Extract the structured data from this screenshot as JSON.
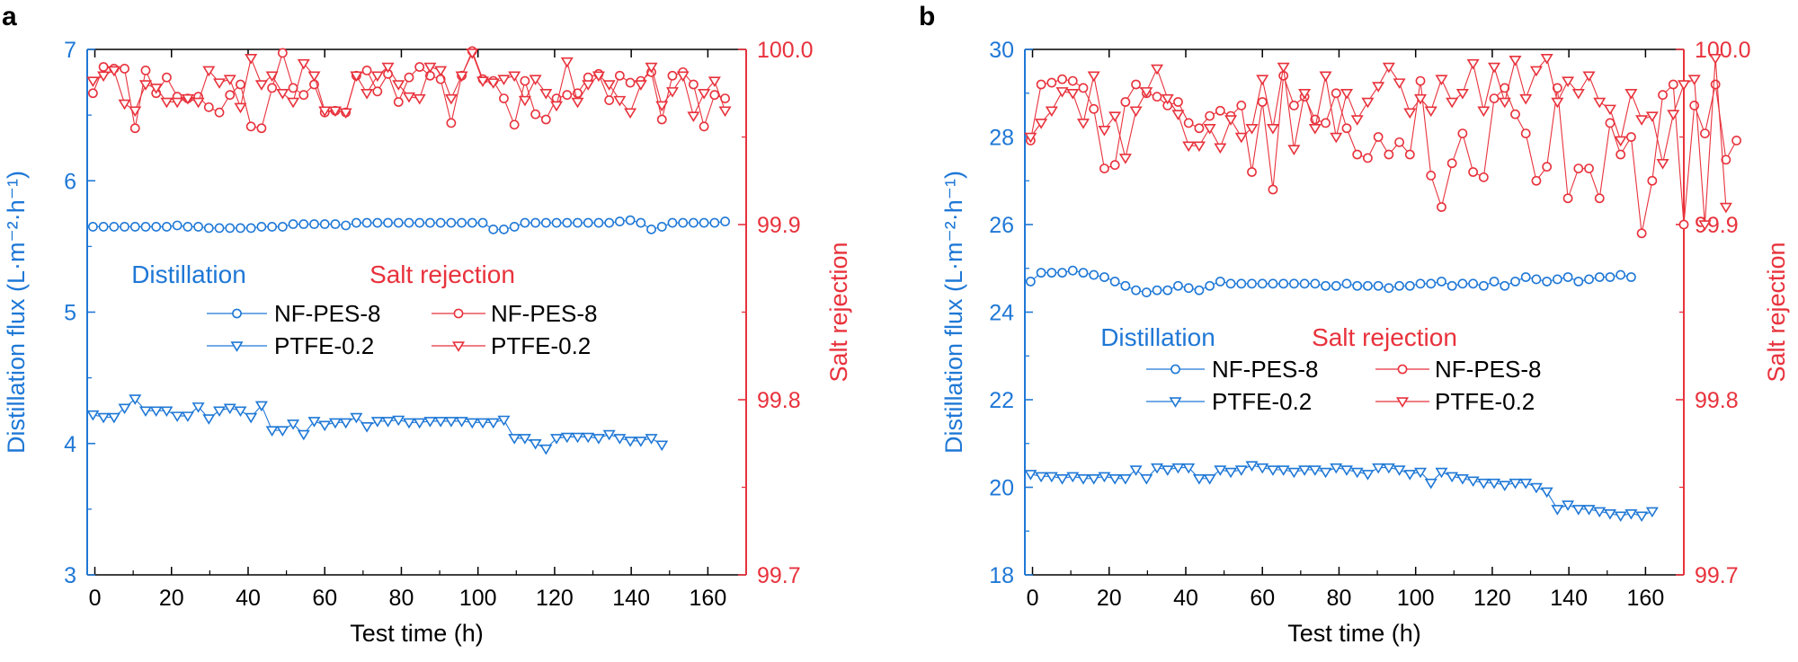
{
  "colors": {
    "blue": "#1f78d6",
    "red": "#e8323c",
    "black": "#000000"
  },
  "chart_data": [
    {
      "panel_label": "a",
      "type": "scatter",
      "xlabel": "Test time (h)",
      "ylabel_left": "Distillation flux (L·m⁻²·h⁻¹)",
      "ylabel_right": "Salt rejection",
      "xlim": [
        -2,
        170
      ],
      "xticks": [
        "0",
        "20",
        "40",
        "60",
        "80",
        "100",
        "120",
        "140",
        "160"
      ],
      "ylim_left": [
        3,
        7
      ],
      "yticks_left": [
        "3",
        "4",
        "5",
        "6",
        "7"
      ],
      "ylim_right": [
        99.7,
        100.0
      ],
      "yticks_right": [
        "99.7",
        "99.8",
        "99.9",
        "100.0"
      ],
      "legend": {
        "group_left_title": "Distillation",
        "group_right_title": "Salt rejection",
        "entries_left": [
          "NF-PES-8",
          "PTFE-0.2"
        ],
        "entries_right": [
          "NF-PES-8",
          "PTFE-0.2"
        ]
      },
      "series": [
        {
          "name": "NF-PES-8 (Distillation)",
          "axis": "left",
          "marker": "circle",
          "color": "#1f78d6",
          "x_start": -0.5,
          "x_step": 2.75,
          "values": [
            5.65,
            5.65,
            5.65,
            5.65,
            5.65,
            5.65,
            5.65,
            5.65,
            5.66,
            5.65,
            5.65,
            5.64,
            5.64,
            5.64,
            5.64,
            5.64,
            5.65,
            5.65,
            5.65,
            5.67,
            5.67,
            5.67,
            5.67,
            5.67,
            5.66,
            5.68,
            5.68,
            5.68,
            5.68,
            5.68,
            5.68,
            5.68,
            5.68,
            5.68,
            5.68,
            5.68,
            5.68,
            5.68,
            5.63,
            5.63,
            5.65,
            5.68,
            5.68,
            5.68,
            5.68,
            5.68,
            5.68,
            5.68,
            5.68,
            5.68,
            5.69,
            5.7,
            5.68,
            5.63,
            5.65,
            5.68,
            5.68,
            5.68,
            5.68,
            5.68,
            5.69
          ]
        },
        {
          "name": "PTFE-0.2 (Distillation)",
          "axis": "left",
          "marker": "triangle",
          "color": "#1f78d6",
          "x_start": -0.5,
          "x_step": 2.75,
          "values": [
            4.22,
            4.2,
            4.2,
            4.27,
            4.34,
            4.25,
            4.25,
            4.25,
            4.21,
            4.21,
            4.28,
            4.19,
            4.25,
            4.27,
            4.25,
            4.2,
            4.29,
            4.1,
            4.1,
            4.15,
            4.07,
            4.17,
            4.14,
            4.16,
            4.16,
            4.2,
            4.13,
            4.17,
            4.17,
            4.18,
            4.16,
            4.16,
            4.17,
            4.17,
            4.17,
            4.17,
            4.16,
            4.16,
            4.16,
            4.18,
            4.04,
            4.04,
            4.0,
            3.96,
            4.04,
            4.05,
            4.05,
            4.05,
            4.04,
            4.07,
            4.04,
            4.02,
            4.02,
            4.04,
            3.99
          ]
        },
        {
          "name": "NF-PES-8 (Salt rejection)",
          "axis": "right",
          "marker": "circle",
          "color": "#e8323c",
          "x_start": -0.5,
          "x_step": 2.75,
          "values": [
            99.975,
            99.99,
            99.989,
            99.989,
            99.955,
            99.988,
            99.975,
            99.984,
            99.973,
            99.972,
            99.973,
            99.967,
            99.964,
            99.974,
            99.98,
            99.956,
            99.955,
            99.978,
            99.998,
            99.978,
            99.974,
            99.98,
            99.964,
            99.965,
            99.964,
            99.985,
            99.988,
            99.976,
            99.986,
            99.97,
            99.984,
            99.99,
            99.985,
            99.983,
            99.958,
            99.985,
            99.999,
            99.983,
            99.982,
            99.972,
            99.957,
            99.982,
            99.963,
            99.96,
            99.972,
            99.974,
            99.975,
            99.984,
            99.986,
            99.971,
            99.985,
            99.981,
            99.982,
            99.987,
            99.96,
            99.985,
            99.987,
            99.98,
            99.956,
            99.974,
            99.972
          ]
        },
        {
          "name": "PTFE-0.2 (Salt rejection)",
          "axis": "right",
          "marker": "triangle",
          "color": "#e8323c",
          "x_start": -0.5,
          "x_step": 2.75,
          "values": [
            99.982,
            99.985,
            99.988,
            99.969,
            99.965,
            99.98,
            99.978,
            99.97,
            99.97,
            99.972,
            99.97,
            99.988,
            99.981,
            99.983,
            99.967,
            99.995,
            99.98,
            99.985,
            99.975,
            99.97,
            99.992,
            99.985,
            99.965,
            99.965,
            99.964,
            99.985,
            99.975,
            99.985,
            99.99,
            99.98,
            99.973,
            99.972,
            99.99,
            99.988,
            99.972,
            99.985,
            99.998,
            99.982,
            99.981,
            99.983,
            99.985,
            99.971,
            99.983,
            99.975,
            99.968,
            99.993,
            99.97,
            99.98,
            99.985,
            99.98,
            99.971,
            99.964,
            99.98,
            99.99,
            99.968,
            99.976,
            99.985,
            99.962,
            99.975,
            99.982,
            99.965
          ]
        }
      ]
    },
    {
      "panel_label": "b",
      "type": "scatter",
      "xlabel": "Test time (h)",
      "ylabel_left": "Distillation flux (L·m⁻²·h⁻¹)",
      "ylabel_right": "Salt rejection",
      "xlim": [
        -2,
        170
      ],
      "xticks": [
        "0",
        "20",
        "40",
        "60",
        "80",
        "100",
        "120",
        "140",
        "160"
      ],
      "ylim_left": [
        18,
        30
      ],
      "yticks_left": [
        "18",
        "20",
        "22",
        "24",
        "26",
        "28",
        "30"
      ],
      "ylim_right": [
        99.7,
        100.0
      ],
      "yticks_right": [
        "99.7",
        "99.8",
        "99.9",
        "100.0"
      ],
      "legend": {
        "group_left_title": "Distillation",
        "group_right_title": "Salt rejection",
        "entries_left": [
          "NF-PES-8",
          "PTFE-0.2"
        ],
        "entries_right": [
          "NF-PES-8",
          "PTFE-0.2"
        ]
      },
      "series": [
        {
          "name": "NF-PES-8 (Distillation)",
          "axis": "left",
          "marker": "circle",
          "color": "#1f78d6",
          "x_start": -0.5,
          "x_step": 2.75,
          "values": [
            24.7,
            24.9,
            24.9,
            24.9,
            24.95,
            24.9,
            24.85,
            24.8,
            24.7,
            24.6,
            24.5,
            24.45,
            24.5,
            24.5,
            24.6,
            24.55,
            24.5,
            24.6,
            24.7,
            24.65,
            24.65,
            24.65,
            24.65,
            24.65,
            24.65,
            24.65,
            24.65,
            24.65,
            24.6,
            24.6,
            24.65,
            24.6,
            24.6,
            24.6,
            24.55,
            24.6,
            24.6,
            24.65,
            24.65,
            24.7,
            24.6,
            24.65,
            24.65,
            24.6,
            24.7,
            24.6,
            24.7,
            24.8,
            24.75,
            24.7,
            24.75,
            24.8,
            24.7,
            24.75,
            24.8,
            24.8,
            24.85,
            24.8
          ]
        },
        {
          "name": "PTFE-0.2 (Distillation)",
          "axis": "left",
          "marker": "triangle",
          "color": "#1f78d6",
          "x_start": -0.5,
          "x_step": 2.75,
          "values": [
            20.3,
            20.25,
            20.25,
            20.2,
            20.25,
            20.2,
            20.2,
            20.25,
            20.2,
            20.2,
            20.4,
            20.2,
            20.45,
            20.4,
            20.45,
            20.45,
            20.2,
            20.2,
            20.4,
            20.35,
            20.4,
            20.5,
            20.45,
            20.4,
            20.4,
            20.35,
            20.4,
            20.4,
            20.35,
            20.45,
            20.4,
            20.35,
            20.3,
            20.45,
            20.45,
            20.4,
            20.3,
            20.35,
            20.1,
            20.35,
            20.25,
            20.2,
            20.15,
            20.1,
            20.1,
            20.05,
            20.1,
            20.1,
            20.0,
            19.9,
            19.5,
            19.6,
            19.5,
            19.5,
            19.45,
            19.4,
            19.35,
            19.4,
            19.35,
            19.45
          ]
        },
        {
          "name": "NF-PES-8 (Salt rejection)",
          "axis": "right",
          "marker": "circle",
          "color": "#e8323c",
          "x_start": -0.5,
          "x_step": 2.75,
          "values": [
            99.948,
            99.98,
            99.981,
            99.983,
            99.982,
            99.978,
            99.966,
            99.932,
            99.934,
            99.97,
            99.98,
            99.975,
            99.973,
            99.968,
            99.97,
            99.958,
            99.955,
            99.962,
            99.965,
            99.962,
            99.968,
            99.93,
            99.97,
            99.92,
            99.985,
            99.968,
            99.973,
            99.96,
            99.958,
            99.975,
            99.955,
            99.94,
            99.938,
            99.95,
            99.94,
            99.947,
            99.94,
            99.982,
            99.928,
            99.91,
            99.935,
            99.952,
            99.93,
            99.927,
            99.972,
            99.978,
            99.963,
            99.952,
            99.925,
            99.933,
            99.978,
            99.915,
            99.932,
            99.932,
            99.915,
            99.958,
            99.94,
            99.95,
            99.895,
            99.925,
            99.974,
            99.98,
            99.9,
            99.968,
            99.952,
            99.98,
            99.937,
            99.948
          ]
        },
        {
          "name": "PTFE-0.2 (Salt rejection)",
          "axis": "right",
          "marker": "triangle",
          "color": "#e8323c",
          "x_start": -0.5,
          "x_step": 2.75,
          "values": [
            99.95,
            99.958,
            99.965,
            99.976,
            99.975,
            99.958,
            99.985,
            99.954,
            99.962,
            99.938,
            99.965,
            99.976,
            99.989,
            99.972,
            99.963,
            99.945,
            99.945,
            99.955,
            99.944,
            99.96,
            99.95,
            99.955,
            99.983,
            99.955,
            99.99,
            99.943,
            99.975,
            99.955,
            99.985,
            99.95,
            99.975,
            99.96,
            99.97,
            99.979,
            99.99,
            99.981,
            99.964,
            99.972,
            99.965,
            99.983,
            99.97,
            99.975,
            99.992,
            99.965,
            99.99,
            99.97,
            99.994,
            99.972,
            99.988,
            99.995,
            99.97,
            99.982,
            99.975,
            99.985,
            99.97,
            99.966,
            99.948,
            99.975,
            99.96,
            99.962,
            99.935,
            99.963,
            99.98,
            99.983,
            99.9,
            99.995,
            99.91
          ]
        }
      ]
    }
  ]
}
